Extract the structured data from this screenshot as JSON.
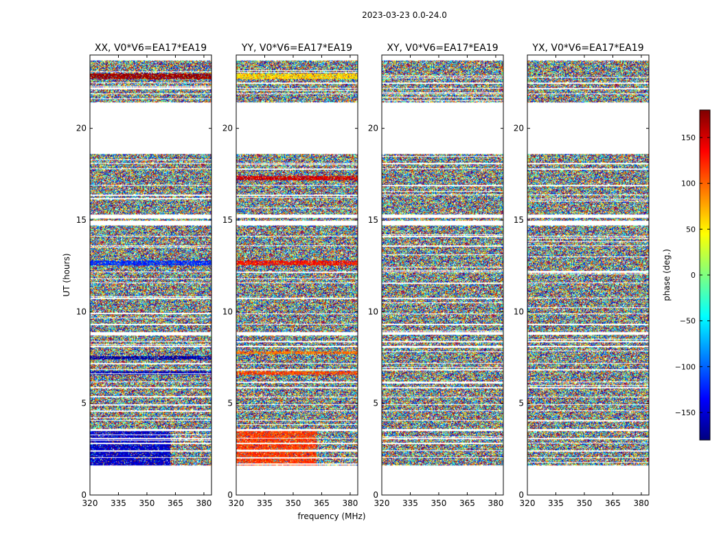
{
  "suptitle": "2023-03-23 0.0-24.0",
  "colorbar": {
    "label": "phase (deg.)",
    "range": [
      -180,
      180
    ],
    "ticks": [
      150,
      100,
      50,
      0,
      -50,
      -100,
      -150
    ],
    "tick_labels": [
      "150",
      "100",
      "50",
      "0",
      "−50",
      "−100",
      "−150"
    ],
    "cmap": "jet",
    "colors": [
      "#00007f",
      "#0000ff",
      "#007fff",
      "#00ffff",
      "#7fff7f",
      "#ffff00",
      "#ff7f00",
      "#ff0000",
      "#7f0000"
    ]
  },
  "chart_data": [
    {
      "type": "heatmap",
      "title": "XX, V0*V6=EA17*EA19",
      "xlabel": "",
      "ylabel": "UT (hours)",
      "xlim": [
        320,
        384
      ],
      "ylim": [
        0,
        24
      ],
      "xticks": [
        320,
        335,
        350,
        365,
        380
      ],
      "yticks": [
        0,
        5,
        10,
        15,
        20
      ],
      "value": "phase (deg.)",
      "coherent_bands": [
        {
          "t": [
            22.7,
            23.0
          ],
          "phase": 170
        },
        {
          "t": [
            12.55,
            12.8
          ],
          "phase": -120
        },
        {
          "t": [
            7.4,
            7.6
          ],
          "phase": -165
        },
        {
          "t": [
            6.6,
            6.75
          ],
          "phase": -160
        },
        {
          "t": [
            1.6,
            3.5
          ],
          "phase": -155,
          "f": [
            320,
            362
          ]
        }
      ]
    },
    {
      "type": "heatmap",
      "title": "YY, V0*V6=EA17*EA19",
      "xlabel": "frequency (MHz)",
      "ylabel": "",
      "xlim": [
        320,
        384
      ],
      "ylim": [
        0,
        24
      ],
      "xticks": [
        320,
        335,
        350,
        365,
        380
      ],
      "yticks": [
        0,
        5,
        10,
        15,
        20
      ],
      "value": "phase (deg.)",
      "coherent_bands": [
        {
          "t": [
            22.7,
            23.0
          ],
          "phase": 60
        },
        {
          "t": [
            12.55,
            12.8
          ],
          "phase": 130
        },
        {
          "t": [
            17.2,
            17.4
          ],
          "phase": 150
        },
        {
          "t": [
            7.7,
            7.85
          ],
          "phase": 95
        },
        {
          "t": [
            6.6,
            6.75
          ],
          "phase": 110
        },
        {
          "t": [
            1.6,
            3.5
          ],
          "phase": 115,
          "f": [
            320,
            362
          ]
        }
      ]
    },
    {
      "type": "heatmap",
      "title": "XY, V0*V6=EA17*EA19",
      "xlabel": "",
      "ylabel": "",
      "xlim": [
        320,
        384
      ],
      "ylim": [
        0,
        24
      ],
      "xticks": [
        320,
        335,
        350,
        365,
        380
      ],
      "yticks": [
        0,
        5,
        10,
        15,
        20
      ],
      "value": "phase (deg.)",
      "coherent_bands": []
    },
    {
      "type": "heatmap",
      "title": "YX, V0*V6=EA17*EA19",
      "xlabel": "",
      "ylabel": "",
      "xlim": [
        320,
        384
      ],
      "ylim": [
        0,
        24
      ],
      "xticks": [
        320,
        335,
        350,
        365,
        380
      ],
      "yticks": [
        0,
        5,
        10,
        15,
        20
      ],
      "value": "phase (deg.)",
      "coherent_bands": []
    }
  ],
  "data_time_ranges": [
    [
      21.4,
      23.7
    ],
    [
      18.6,
      15.3
    ],
    [
      15.1,
      14.95
    ],
    [
      14.7,
      8.9
    ],
    [
      8.75,
      5.9
    ],
    [
      5.8,
      3.6
    ],
    [
      3.5,
      1.6
    ]
  ],
  "flagged_lines": [
    22.5,
    22.2,
    21.9,
    18.1,
    17.8,
    16.9,
    16.4,
    14.15,
    13.6,
    12.2,
    11.6,
    10.75,
    9.9,
    9.35,
    8.4,
    8.15,
    7.2,
    6.85,
    6.2,
    5.35,
    4.95,
    4.6,
    4.1,
    3.1,
    2.85,
    2.45,
    2.05
  ]
}
